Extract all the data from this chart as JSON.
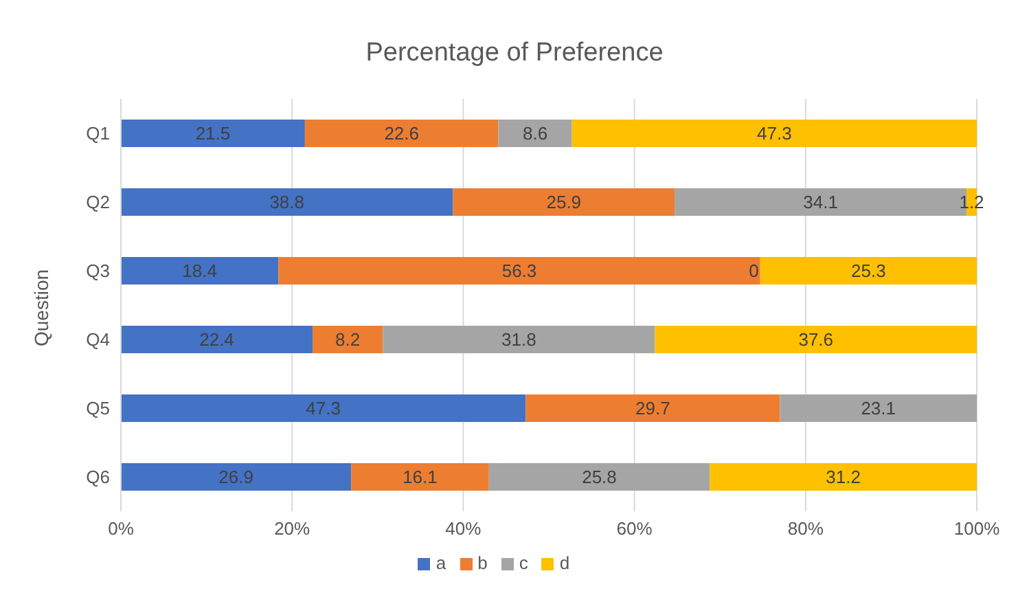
{
  "chart_data": {
    "type": "bar",
    "orientation": "horizontal",
    "stacked": true,
    "title": "Percentage of Preference",
    "ylabel": "Question",
    "categories": [
      "Q1",
      "Q2",
      "Q3",
      "Q4",
      "Q5",
      "Q6"
    ],
    "series": [
      {
        "name": "a",
        "color": "#4472c4",
        "values": [
          21.5,
          38.8,
          18.4,
          22.4,
          47.3,
          26.9
        ]
      },
      {
        "name": "b",
        "color": "#ed7d31",
        "values": [
          22.6,
          25.9,
          56.3,
          8.2,
          29.7,
          16.1
        ]
      },
      {
        "name": "c",
        "color": "#a5a5a5",
        "values": [
          8.6,
          34.1,
          0,
          31.8,
          23.1,
          25.8
        ]
      },
      {
        "name": "d",
        "color": "#ffc000",
        "values": [
          47.3,
          1.2,
          25.3,
          37.6,
          null,
          31.2
        ]
      }
    ],
    "xlim": [
      0,
      100
    ],
    "xticks": [
      {
        "value": 0,
        "label": "0%"
      },
      {
        "value": 20,
        "label": "20%"
      },
      {
        "value": 40,
        "label": "40%"
      },
      {
        "value": 60,
        "label": "60%"
      },
      {
        "value": 80,
        "label": "80%"
      },
      {
        "value": 100,
        "label": "100%"
      }
    ],
    "grid": "x",
    "legend": "bottom",
    "data_labels": true
  }
}
